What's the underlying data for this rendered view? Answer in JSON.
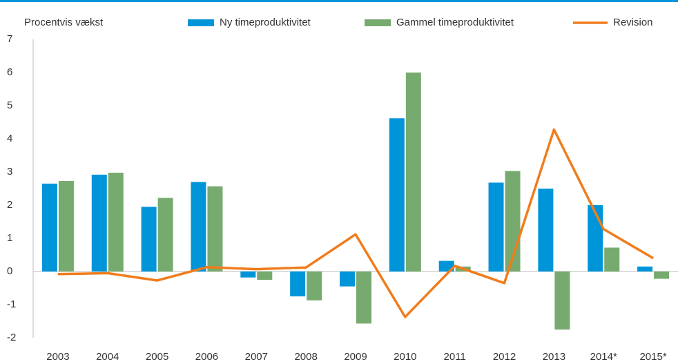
{
  "chart_data": {
    "type": "bar",
    "title": "Procentvis vækst",
    "categories": [
      "2003",
      "2004",
      "2005",
      "2006",
      "2007",
      "2008",
      "2009",
      "2010",
      "2011",
      "2012",
      "2013",
      "2014*",
      "2015*"
    ],
    "series": [
      {
        "name": "Ny timeproduktivitet",
        "color": "#0095d9",
        "type": "bar",
        "values": [
          2.65,
          2.92,
          1.95,
          2.7,
          -0.18,
          -0.75,
          -0.45,
          4.62,
          0.32,
          2.68,
          2.5,
          2.0,
          0.15
        ]
      },
      {
        "name": "Gammel timeproduktivitet",
        "color": "#77aa6e",
        "type": "bar",
        "values": [
          2.73,
          2.98,
          2.22,
          2.57,
          -0.25,
          -0.87,
          -1.57,
          6.0,
          0.15,
          3.03,
          -1.75,
          0.72,
          -0.22
        ]
      },
      {
        "name": "Revision",
        "color": "#f07c1c",
        "type": "line",
        "values": [
          -0.08,
          -0.05,
          -0.27,
          0.13,
          0.07,
          0.12,
          1.12,
          -1.37,
          0.17,
          -0.35,
          4.28,
          1.28,
          0.4
        ]
      }
    ],
    "ylim": [
      -2,
      7
    ],
    "yticks": [
      -2,
      -1,
      0,
      1,
      2,
      3,
      4,
      5,
      6,
      7
    ],
    "grid": false
  }
}
